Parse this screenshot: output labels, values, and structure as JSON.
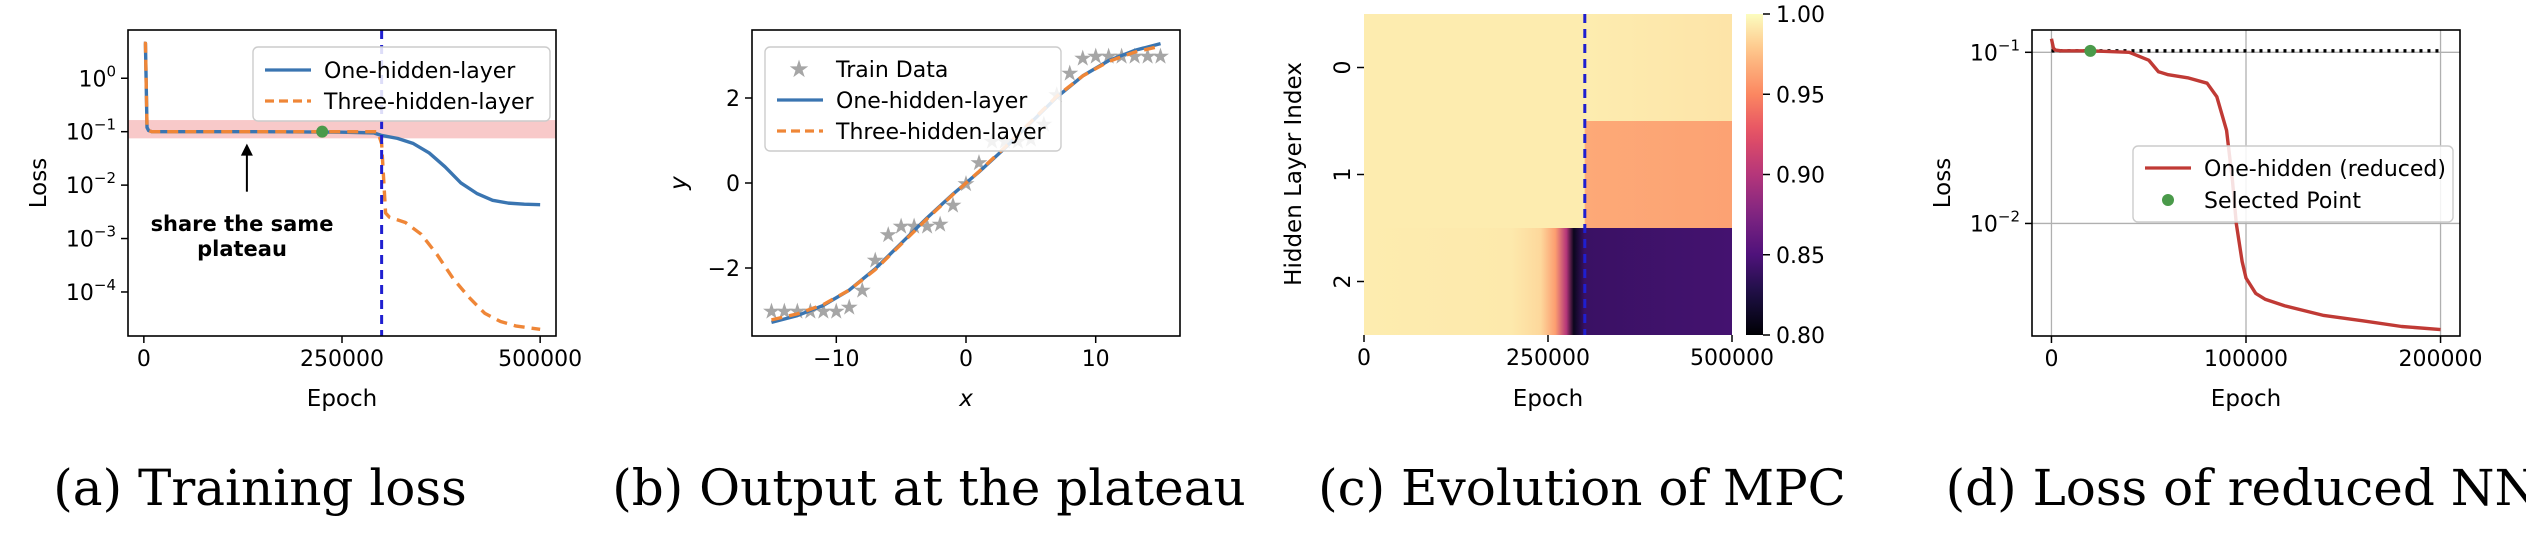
{
  "chart_data": [
    {
      "type": "line",
      "caption": "(a) Training loss",
      "xlabel": "Epoch",
      "ylabel": "Loss",
      "yscale": "log",
      "xlim": [
        -20000,
        520000
      ],
      "ylim": [
        1.5e-05,
        8
      ],
      "xticks": [
        0,
        250000,
        500000
      ],
      "xtick_labels": [
        "0",
        "250000",
        "500000"
      ],
      "yticks": [
        1,
        0.1,
        0.01,
        0.001,
        0.0001
      ],
      "ytick_labels": [
        "10^0",
        "10^-1",
        "10^-2",
        "10^-3",
        "10^-4"
      ],
      "plateau_band": [
        0.075,
        0.165
      ],
      "vline_x": 300000,
      "selected_point": [
        225000,
        0.1
      ],
      "annotation": {
        "lines": [
          "share the same",
          "plateau"
        ],
        "arrow_to": [
          130000,
          0.1
        ]
      },
      "legend": "top-right",
      "series": [
        {
          "name": "One-hidden-layer",
          "color": "#3a75b1",
          "dash": "solid",
          "x": [
            0,
            2000,
            4000,
            6000,
            10000,
            50000,
            150000,
            250000,
            290000,
            300000,
            320000,
            340000,
            360000,
            380000,
            400000,
            420000,
            440000,
            460000,
            480000,
            500000
          ],
          "y": [
            4.5,
            4.5,
            0.12,
            0.105,
            0.1,
            0.1,
            0.1,
            0.098,
            0.095,
            0.085,
            0.075,
            0.06,
            0.04,
            0.022,
            0.011,
            0.007,
            0.0052,
            0.0046,
            0.0044,
            0.0043
          ]
        },
        {
          "name": "Three-hidden-layer",
          "color": "#ef8637",
          "dash": "dashed",
          "x": [
            0,
            2000,
            4000,
            6000,
            10000,
            50000,
            150000,
            250000,
            295000,
            300000,
            305000,
            310000,
            330000,
            350000,
            370000,
            390000,
            410000,
            430000,
            450000,
            470000,
            500000
          ],
          "y": [
            4.5,
            4.5,
            0.12,
            0.105,
            0.1,
            0.1,
            0.1,
            0.1,
            0.1,
            0.06,
            0.003,
            0.0025,
            0.002,
            0.0012,
            0.0005,
            0.00018,
            8e-05,
            4e-05,
            2.8e-05,
            2.3e-05,
            2e-05
          ]
        }
      ]
    },
    {
      "type": "line",
      "caption": "(b) Output at the plateau",
      "xlabel": "x",
      "ylabel": "y",
      "xlim": [
        -16.5,
        16.5
      ],
      "ylim": [
        -3.6,
        3.6
      ],
      "xticks": [
        -10,
        0,
        10
      ],
      "xtick_labels": [
        "−10",
        "0",
        "10"
      ],
      "yticks": [
        -2,
        0,
        2
      ],
      "ytick_labels": [
        "−2",
        "0",
        "2"
      ],
      "legend": "top-left",
      "train_data": {
        "name": "Train Data",
        "color": "#a6a6a6",
        "x": [
          -15,
          -14,
          -13,
          -12,
          -11,
          -10,
          -9,
          -8,
          -7,
          -6,
          -5,
          -4,
          -3,
          -2,
          -1,
          0,
          1,
          2,
          3,
          4,
          5,
          6,
          7,
          8,
          9,
          10,
          11,
          12,
          13,
          14,
          15
        ],
        "y": [
          -3,
          -3,
          -3,
          -3,
          -3,
          -3,
          -2.9,
          -2.5,
          -1.8,
          -1.2,
          -1.0,
          -1.0,
          -1.0,
          -0.95,
          -0.5,
          0,
          0.5,
          1.0,
          1.0,
          1.0,
          1.05,
          1.4,
          2.1,
          2.6,
          2.95,
          3,
          3,
          3,
          3,
          3,
          3
        ]
      },
      "series": [
        {
          "name": "One-hidden-layer",
          "color": "#3a75b1",
          "dash": "solid",
          "x": [
            -15,
            -13,
            -11,
            -9,
            -7,
            -5,
            -3,
            -1,
            0,
            1,
            3,
            5,
            7,
            9,
            11,
            13,
            15
          ],
          "y": [
            -3.28,
            -3.12,
            -2.88,
            -2.52,
            -2.02,
            -1.42,
            -0.82,
            -0.26,
            0,
            0.26,
            0.82,
            1.42,
            2.02,
            2.52,
            2.88,
            3.12,
            3.28
          ]
        },
        {
          "name": "Three-hidden-layer",
          "color": "#ef8637",
          "dash": "dashed",
          "x": [
            -15,
            -13,
            -11,
            -9,
            -7,
            -5,
            -3,
            -1,
            0,
            1,
            3,
            5,
            7,
            9,
            11,
            13,
            15
          ],
          "y": [
            -3.22,
            -3.08,
            -2.86,
            -2.52,
            -2.04,
            -1.44,
            -0.84,
            -0.27,
            0,
            0.27,
            0.84,
            1.44,
            2.04,
            2.52,
            2.86,
            3.08,
            3.22
          ]
        }
      ]
    },
    {
      "type": "heatmap",
      "caption": "(c) Evolution of MPC",
      "xlabel": "Epoch",
      "ylabel": "Hidden Layer Index",
      "xlim": [
        0,
        500000
      ],
      "xticks": [
        0,
        250000,
        500000
      ],
      "xtick_labels": [
        "0",
        "250000",
        "500000"
      ],
      "rows": [
        "0",
        "1",
        "2"
      ],
      "vline_x": 300000,
      "colormap": "magma",
      "colorbar": {
        "min": 0.8,
        "max": 1.0,
        "ticks": [
          1.0,
          0.95,
          0.9,
          0.85,
          0.8
        ],
        "tick_labels": [
          "1.00",
          "0.95",
          "0.90",
          "0.85",
          "0.80"
        ]
      },
      "row_profiles": [
        {
          "x": [
            0,
            300000,
            500000
          ],
          "v": [
            0.993,
            0.993,
            0.99
          ]
        },
        {
          "x": [
            0,
            299000,
            301000,
            500000
          ],
          "v": [
            0.993,
            0.993,
            0.965,
            0.962
          ]
        },
        {
          "x": [
            0,
            200000,
            240000,
            260000,
            275000,
            285000,
            300000,
            500000
          ],
          "v": [
            0.993,
            0.992,
            0.985,
            0.96,
            0.9,
            0.81,
            0.84,
            0.845
          ]
        }
      ]
    },
    {
      "type": "line",
      "caption": "(d) Loss of reduced NN",
      "xlabel": "Epoch",
      "ylabel": "Loss",
      "yscale": "log",
      "grid": true,
      "xlim": [
        -10000,
        210000
      ],
      "ylim": [
        0.0022,
        0.135
      ],
      "xticks": [
        0,
        100000,
        200000
      ],
      "xtick_labels": [
        "0",
        "100000",
        "200000"
      ],
      "yticks": [
        0.1,
        0.01
      ],
      "ytick_labels": [
        "10^-1",
        "10^-2"
      ],
      "hline_y": 0.102,
      "legend": "center-right",
      "series": [
        {
          "name": "One-hidden (reduced)",
          "color": "#c03a35",
          "dash": "solid",
          "x": [
            0,
            1000,
            2000,
            5000,
            20000,
            40000,
            50000,
            55000,
            60000,
            70000,
            80000,
            85000,
            90000,
            93000,
            95000,
            98000,
            100000,
            105000,
            110000,
            120000,
            140000,
            160000,
            180000,
            200000
          ],
          "y": [
            0.12,
            0.106,
            0.103,
            0.102,
            0.102,
            0.1,
            0.09,
            0.077,
            0.074,
            0.071,
            0.066,
            0.055,
            0.035,
            0.018,
            0.01,
            0.006,
            0.0048,
            0.0039,
            0.0036,
            0.0033,
            0.0029,
            0.0027,
            0.0025,
            0.0024
          ]
        },
        {
          "name": "Selected Point",
          "color": "#4a9a4a",
          "marker": "dot",
          "x": [
            20000
          ],
          "y": [
            0.102
          ]
        }
      ]
    }
  ]
}
